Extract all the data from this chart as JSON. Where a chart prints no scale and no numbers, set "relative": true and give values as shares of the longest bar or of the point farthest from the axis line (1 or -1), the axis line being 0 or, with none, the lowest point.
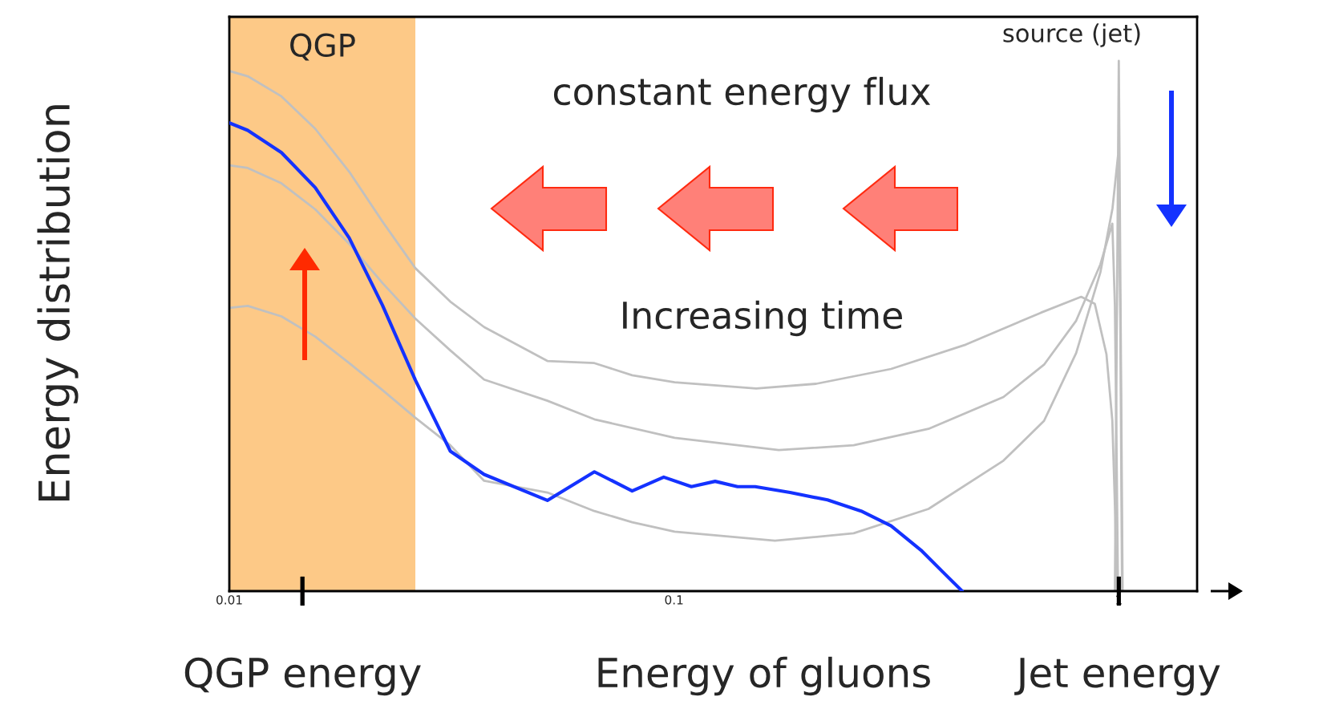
{
  "chart_data": {
    "type": "line",
    "relative": true,
    "log": "x",
    "ylabel": "Energy distribution",
    "xlabel": "Energy of gluons",
    "xlim": [
      0.01,
      1.5
    ],
    "xticks": [
      {
        "value": 0.01,
        "label": "0.01"
      },
      0.1,
      1
    ],
    "tick_labels": "x",
    "bands": [
      {
        "axis": "x",
        "from": 0.01,
        "to": 0.0262,
        "label": "QGP",
        "color": "#fdc987"
      }
    ],
    "annotations": [
      "constant energy flux",
      "Increasing time",
      "source (jet)",
      {
        "text": "QGP energy",
        "x": 0.0146,
        "y": 0
      },
      {
        "text": "Jet energy",
        "x": 1,
        "y": 0
      }
    ],
    "legend": false,
    "series": [
      {
        "color": "#c0c0c0",
        "x": [
          0.01,
          0.011,
          0.0131,
          0.0156,
          0.0186,
          0.0221,
          0.0262,
          0.0314,
          0.0374,
          0.0519,
          0.0662,
          0.0805,
          0.1003,
          0.153,
          0.2087,
          0.3076,
          0.4533,
          0.668,
          0.823,
          0.883,
          0.938,
          0.967,
          0.982,
          0.988
        ],
        "values": [
          0.981,
          0.971,
          0.933,
          0.872,
          0.791,
          0.697,
          0.609,
          0.546,
          0.498,
          0.434,
          0.43,
          0.407,
          0.394,
          0.382,
          0.391,
          0.419,
          0.465,
          0.525,
          0.555,
          0.542,
          0.447,
          0.322,
          0.139,
          0
        ]
      },
      {
        "color": "#c0c0c0",
        "x": [
          0.01,
          0.011,
          0.0131,
          0.0156,
          0.0186,
          0.0221,
          0.0262,
          0.0314,
          0.0374,
          0.0519,
          0.0662,
          0.1003,
          0.172,
          0.2534,
          0.3734,
          0.5504,
          0.679,
          0.802,
          0.909,
          0.967,
          0.98,
          0.988,
          0.996
        ],
        "values": [
          0.803,
          0.798,
          0.769,
          0.72,
          0.655,
          0.581,
          0.514,
          0.454,
          0.399,
          0.359,
          0.324,
          0.289,
          0.266,
          0.275,
          0.306,
          0.366,
          0.427,
          0.51,
          0.616,
          0.693,
          0.54,
          0.283,
          0
        ]
      },
      {
        "color": "#c0c0c0",
        "x": [
          0.01,
          0.011,
          0.0131,
          0.0156,
          0.0186,
          0.0221,
          0.0262,
          0.0314,
          0.0374,
          0.0519,
          0.0662,
          0.0805,
          0.1003,
          0.1686,
          0.2534,
          0.3734,
          0.5504,
          0.679,
          0.802,
          0.909,
          0.968,
          0.996,
          1.008,
          1.017
        ],
        "values": [
          0.534,
          0.538,
          0.518,
          0.48,
          0.43,
          0.379,
          0.327,
          0.275,
          0.208,
          0.186,
          0.151,
          0.13,
          0.112,
          0.095,
          0.109,
          0.155,
          0.246,
          0.321,
          0.449,
          0.601,
          0.722,
          0.821,
          0.51,
          0
        ]
      },
      {
        "color": "#c0c0c0",
        "x": [
          0.98,
          1.0,
          1.02
        ],
        "values": [
          0,
          1,
          0
        ]
      },
      {
        "color": "#1432ff",
        "x": [
          0.01,
          0.011,
          0.0131,
          0.0156,
          0.0186,
          0.0221,
          0.0262,
          0.0314,
          0.0374,
          0.0519,
          0.0662,
          0.0805,
          0.0948,
          0.1094,
          0.1237,
          0.1389,
          0.1522,
          0.1823,
          0.2213,
          0.2634,
          0.3076,
          0.3593,
          0.4034,
          0.4445
        ],
        "values": [
          0.883,
          0.869,
          0.827,
          0.761,
          0.666,
          0.539,
          0.398,
          0.264,
          0.22,
          0.171,
          0.225,
          0.189,
          0.215,
          0.197,
          0.207,
          0.197,
          0.197,
          0.186,
          0.172,
          0.151,
          0.123,
          0.077,
          0.035,
          0
        ]
      }
    ]
  }
}
